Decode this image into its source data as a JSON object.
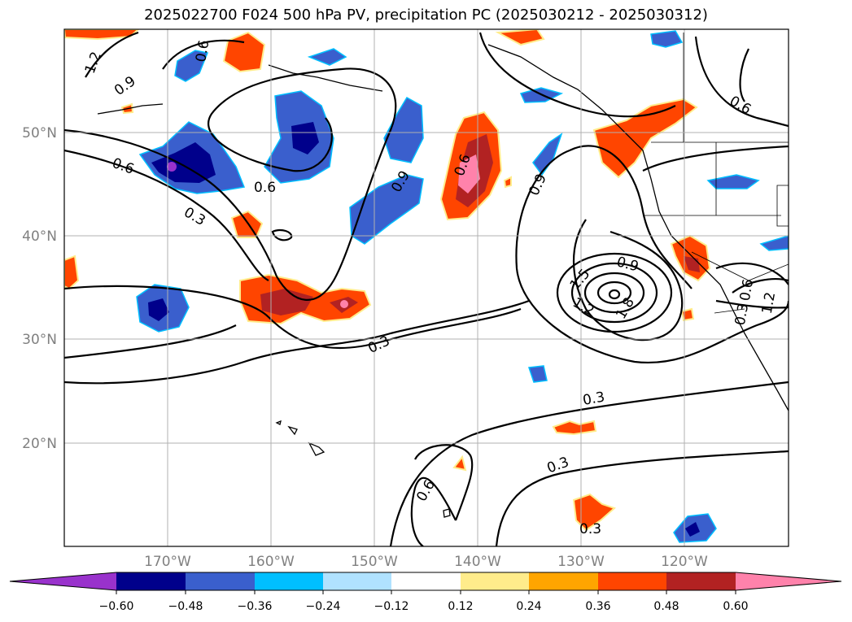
{
  "title": "2025022700 F024 500 hPa PV, precipitation PC (2025030212 - 2025030312)",
  "map": {
    "lon_ticks": [
      "170°W",
      "160°W",
      "150°W",
      "140°W",
      "130°W",
      "120°W"
    ],
    "lat_ticks": [
      "50°N",
      "40°N",
      "30°N",
      "20°N"
    ],
    "grid": true
  },
  "colorbar": {
    "ticks": [
      "−0.60",
      "−0.48",
      "−0.36",
      "−0.24",
      "−0.12",
      "0.12",
      "0.24",
      "0.36",
      "0.48",
      "0.60"
    ],
    "colors": [
      "#9932CC",
      "#00008B",
      "#3A5FCD",
      "#00BFFF",
      "#B0E2FF",
      "#FFFFFF",
      "#FFEC8B",
      "#FFA500",
      "#FF4500",
      "#B22222",
      "#FF82AB"
    ]
  },
  "contour_labels": [
    "1.2",
    "0.9",
    "0.6",
    "0.6",
    "0.6",
    "0.3",
    "0.9",
    "0.3",
    "0.6",
    "0.9",
    "1.5",
    "1.2",
    "1.8",
    "0.9",
    "1.2",
    "0.6",
    "0.3",
    "0.3",
    "0.3",
    "0.6",
    "0.3",
    "0.6"
  ]
}
